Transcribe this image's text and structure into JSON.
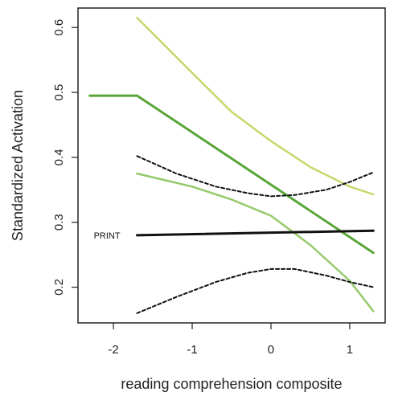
{
  "chart_data": {
    "type": "line",
    "title": "",
    "xlabel": "reading comprehension composite",
    "ylabel": "Standardized Activation",
    "xlim": [
      -2.45,
      1.45
    ],
    "ylim": [
      0.145,
      0.63
    ],
    "grid": false,
    "x_ticks": [
      {
        "value": -2,
        "label": "-2"
      },
      {
        "value": -1,
        "label": "-1"
      },
      {
        "value": 0,
        "label": "0"
      },
      {
        "value": 1,
        "label": "1"
      }
    ],
    "y_ticks": [
      {
        "value": 0.2,
        "label": "0.2"
      },
      {
        "value": 0.3,
        "label": "0.3"
      },
      {
        "value": 0.4,
        "label": "0.4"
      },
      {
        "value": 0.5,
        "label": "0.5"
      },
      {
        "value": 0.6,
        "label": "0.6"
      }
    ],
    "annotations": [
      {
        "text": "PRINT",
        "x": -2.25,
        "y": 0.28
      }
    ],
    "series": [
      {
        "role": "green-fit",
        "color": "#5aa53a",
        "width": 3,
        "dash": "",
        "points": [
          [
            -2.3,
            0.495
          ],
          [
            -2.0,
            0.495
          ],
          [
            -1.7,
            0.495
          ],
          [
            1.3,
            0.253
          ]
        ]
      },
      {
        "role": "green-upper-band",
        "color": "#c9d66a",
        "width": 2.5,
        "dash": "",
        "points": [
          [
            -1.7,
            0.615
          ],
          [
            -1.0,
            0.53
          ],
          [
            -0.5,
            0.47
          ],
          [
            0.0,
            0.425
          ],
          [
            0.5,
            0.385
          ],
          [
            1.0,
            0.355
          ],
          [
            1.3,
            0.343
          ]
        ]
      },
      {
        "role": "green-lower-band",
        "color": "#94c96a",
        "width": 2.5,
        "dash": "",
        "points": [
          [
            -1.7,
            0.375
          ],
          [
            -1.0,
            0.355
          ],
          [
            -0.5,
            0.335
          ],
          [
            0.0,
            0.31
          ],
          [
            0.5,
            0.265
          ],
          [
            1.0,
            0.21
          ],
          [
            1.3,
            0.163
          ]
        ]
      },
      {
        "role": "print-fit",
        "color": "#111111",
        "width": 3,
        "dash": "",
        "points": [
          [
            -1.7,
            0.28
          ],
          [
            1.3,
            0.287
          ]
        ]
      },
      {
        "role": "print-upper-band",
        "color": "#111111",
        "width": 2,
        "dash": "4,3",
        "points": [
          [
            -1.7,
            0.402
          ],
          [
            -1.2,
            0.375
          ],
          [
            -0.7,
            0.355
          ],
          [
            -0.3,
            0.345
          ],
          [
            0.0,
            0.34
          ],
          [
            0.3,
            0.342
          ],
          [
            0.7,
            0.35
          ],
          [
            1.0,
            0.362
          ],
          [
            1.3,
            0.377
          ]
        ]
      },
      {
        "role": "print-lower-band",
        "color": "#111111",
        "width": 2,
        "dash": "4,3",
        "points": [
          [
            -1.7,
            0.16
          ],
          [
            -1.2,
            0.185
          ],
          [
            -0.7,
            0.208
          ],
          [
            -0.3,
            0.222
          ],
          [
            0.0,
            0.228
          ],
          [
            0.3,
            0.228
          ],
          [
            0.7,
            0.218
          ],
          [
            1.0,
            0.208
          ],
          [
            1.3,
            0.2
          ]
        ]
      }
    ]
  }
}
